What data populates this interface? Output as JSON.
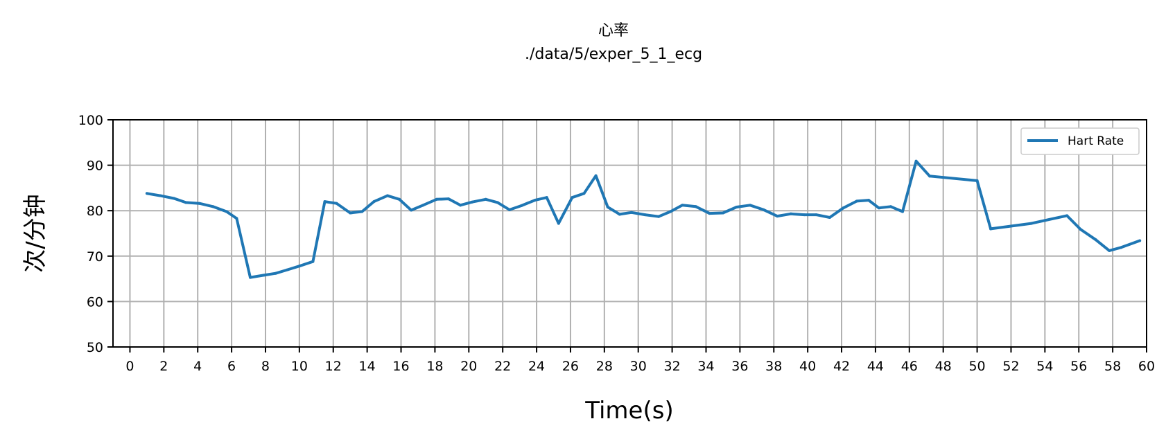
{
  "chart_data": {
    "type": "line",
    "title": "心率",
    "subtitle": "./data/5/exper_5_1_ecg",
    "xlabel": "Time(s)",
    "ylabel": "次/分钟",
    "xlim": [
      -1,
      60
    ],
    "ylim": [
      50,
      100
    ],
    "xticks": [
      0,
      2,
      4,
      6,
      8,
      10,
      12,
      14,
      16,
      18,
      20,
      22,
      24,
      26,
      28,
      30,
      32,
      34,
      36,
      38,
      40,
      42,
      44,
      46,
      48,
      50,
      52,
      54,
      56,
      58,
      60
    ],
    "yticks": [
      50,
      60,
      70,
      80,
      90,
      100
    ],
    "grid": true,
    "legend_position": "top-right",
    "colors": {
      "line": "#1f77b4",
      "grid": "#b0b0b0",
      "axis": "#000000"
    },
    "series": [
      {
        "name": "Hart Rate",
        "x": [
          1.0,
          1.8,
          2.6,
          3.3,
          4.1,
          4.9,
          5.7,
          6.3,
          7.1,
          7.9,
          8.6,
          9.3,
          10.0,
          10.8,
          11.5,
          12.2,
          13.0,
          13.7,
          14.4,
          15.2,
          15.9,
          16.6,
          17.3,
          18.1,
          18.8,
          19.5,
          20.2,
          21.0,
          21.7,
          22.4,
          23.1,
          23.9,
          24.6,
          25.3,
          26.1,
          26.8,
          27.5,
          28.2,
          28.9,
          29.6,
          30.4,
          31.2,
          31.9,
          32.6,
          33.4,
          34.2,
          35.0,
          35.8,
          36.6,
          37.4,
          38.2,
          39.0,
          39.8,
          40.5,
          41.3,
          42.1,
          42.9,
          43.6,
          44.2,
          44.9,
          45.6,
          46.4,
          47.2,
          50.0,
          50.8,
          53.2,
          55.3,
          56.1,
          57.0,
          57.8,
          58.5,
          59.6
        ],
        "values": [
          83.8,
          83.3,
          82.7,
          81.8,
          81.6,
          80.9,
          79.8,
          78.3,
          65.3,
          65.8,
          66.2,
          67.0,
          67.8,
          68.8,
          82.0,
          81.6,
          79.5,
          79.8,
          82.0,
          83.3,
          82.5,
          80.1,
          81.2,
          82.5,
          82.6,
          81.2,
          81.9,
          82.5,
          81.8,
          80.2,
          81.1,
          82.3,
          82.9,
          77.2,
          82.9,
          83.8,
          87.7,
          80.8,
          79.2,
          79.6,
          79.1,
          78.7,
          79.8,
          81.2,
          80.9,
          79.4,
          79.5,
          80.8,
          81.2,
          80.2,
          78.8,
          79.3,
          79.1,
          79.1,
          78.5,
          80.6,
          82.1,
          82.3,
          80.6,
          80.9,
          79.8,
          90.9,
          87.6,
          86.6,
          76.0,
          77.2,
          78.9,
          75.9,
          73.6,
          71.2,
          71.9,
          73.4
        ]
      }
    ]
  }
}
